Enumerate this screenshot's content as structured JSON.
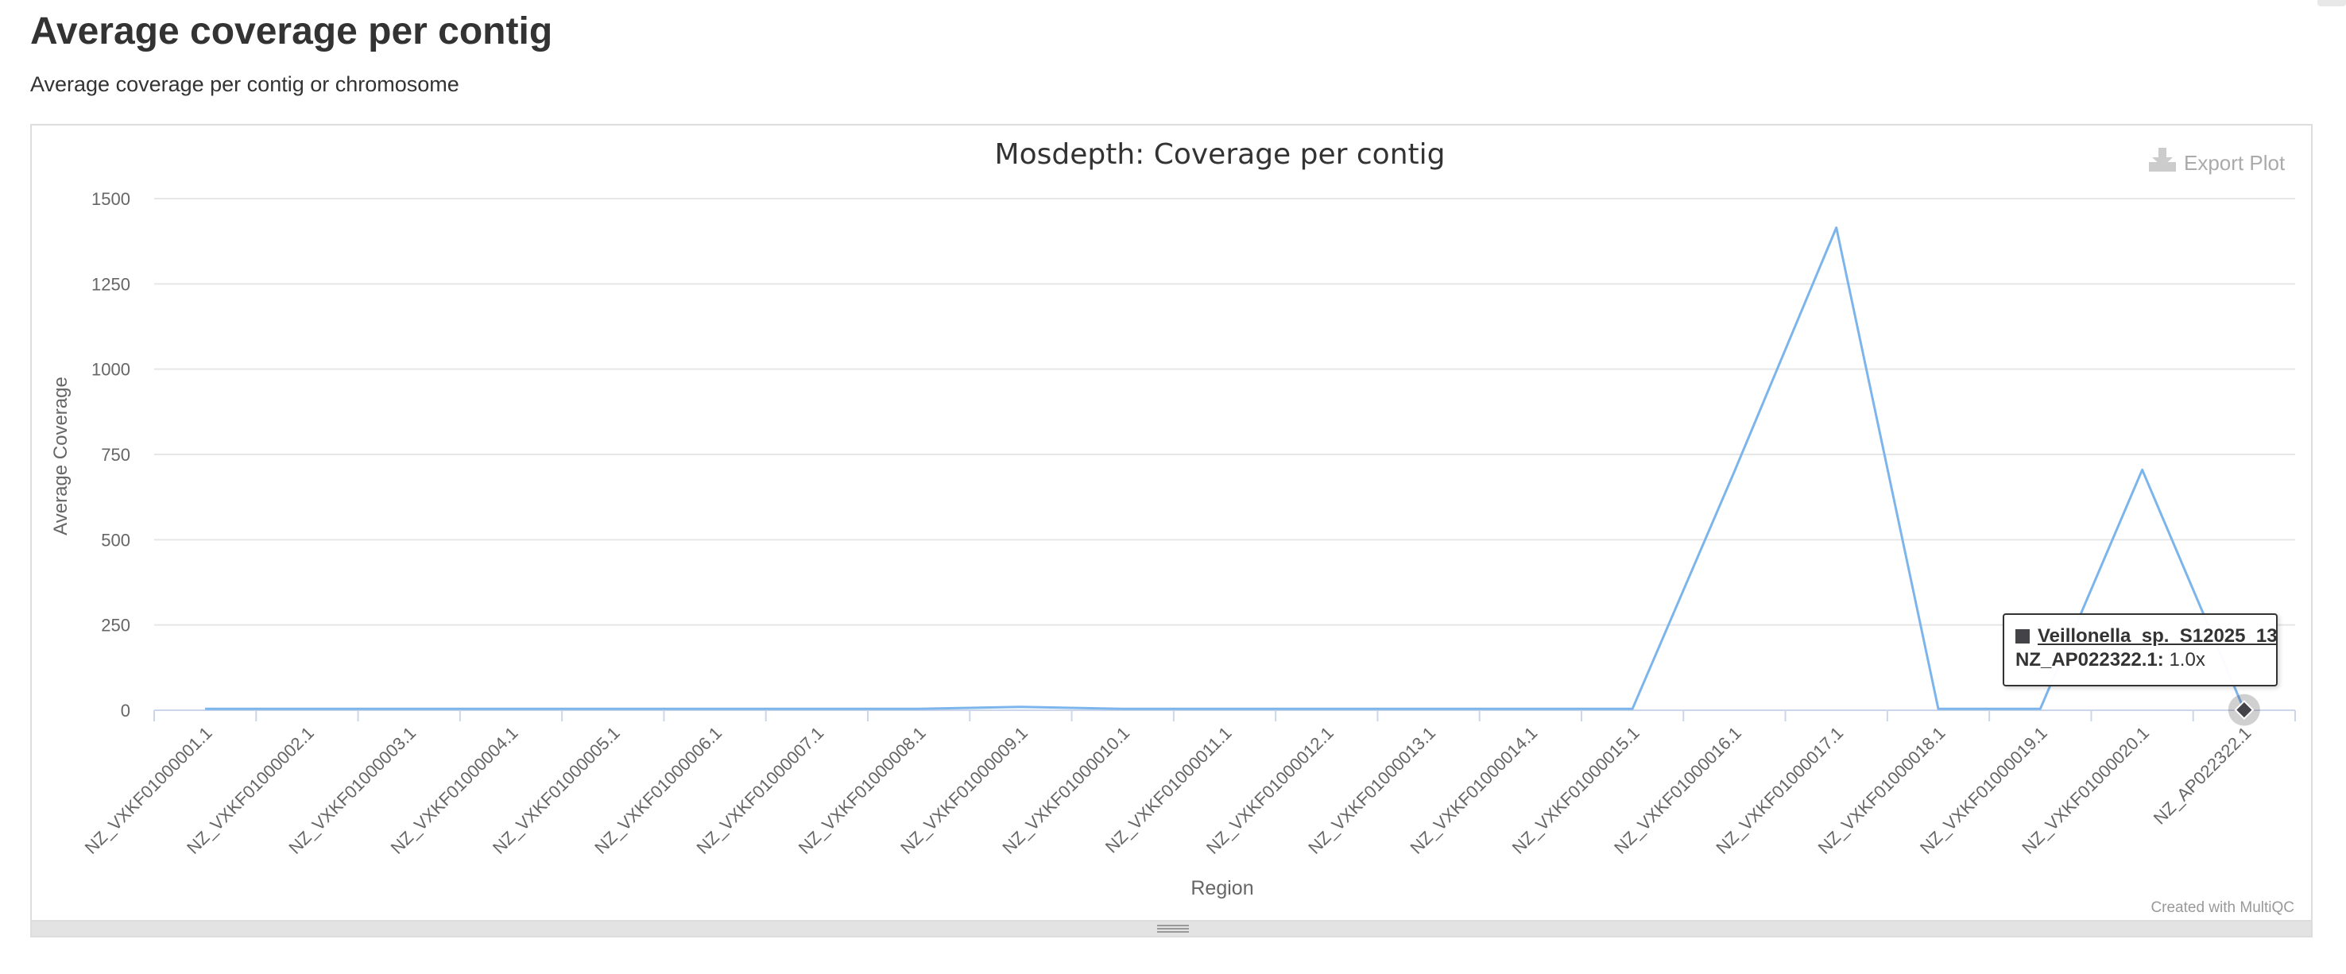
{
  "page": {
    "title": "Average coverage per contig",
    "subtitle": "Average coverage per contig or chromosome"
  },
  "chart": {
    "export_label": "Export Plot",
    "export_icon": "download-icon",
    "credit": "Created with MultiQC"
  },
  "tooltip": {
    "sample": "Veillonella_sp._S12025_13",
    "region": "NZ_AP022322.1",
    "separator": ":",
    "value": "1.0x"
  },
  "colors": {
    "series_line": "#7cb5ec",
    "marker": "#434348",
    "grid": "#e6e6e6",
    "axis_text": "#666666"
  },
  "chart_data": {
    "type": "line",
    "title": "Mosdepth: Coverage per contig",
    "xlabel": "Region",
    "ylabel": "Average Coverage",
    "ylim": [
      0,
      1500
    ],
    "yticks": [
      0,
      250,
      500,
      750,
      1000,
      1250,
      1500
    ],
    "grid": true,
    "legend": "none",
    "categories": [
      "NZ_VXKF01000001.1",
      "NZ_VXKF01000002.1",
      "NZ_VXKF01000003.1",
      "NZ_VXKF01000004.1",
      "NZ_VXKF01000005.1",
      "NZ_VXKF01000006.1",
      "NZ_VXKF01000007.1",
      "NZ_VXKF01000008.1",
      "NZ_VXKF01000009.1",
      "NZ_VXKF01000010.1",
      "NZ_VXKF01000011.1",
      "NZ_VXKF01000012.1",
      "NZ_VXKF01000013.1",
      "NZ_VXKF01000014.1",
      "NZ_VXKF01000015.1",
      "NZ_VXKF01000016.1",
      "NZ_VXKF01000017.1",
      "NZ_VXKF01000018.1",
      "NZ_VXKF01000019.1",
      "NZ_VXKF01000020.1",
      "NZ_AP022322.1"
    ],
    "series": [
      {
        "name": "Veillonella_sp._S12025_13",
        "values": [
          4,
          4,
          4,
          4,
          4,
          4,
          4,
          4,
          10,
          4,
          4,
          4,
          4,
          4,
          4,
          700,
          1415,
          4,
          4,
          705,
          1
        ]
      }
    ],
    "highlight_index": 20
  }
}
